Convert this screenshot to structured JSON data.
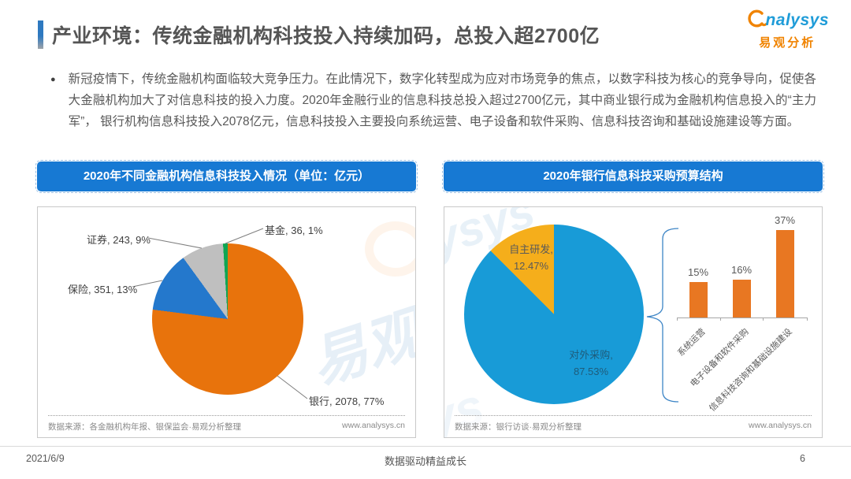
{
  "header": {
    "title": "产业环境：传统金融机构科技投入持续加码，总投入超2700亿",
    "logo": {
      "brand": "nalysys",
      "brand_cn": "易观分析"
    }
  },
  "intro": {
    "bullet": "●",
    "text": "新冠疫情下，传统金融机构面临较大竞争压力。在此情况下，数字化转型成为应对市场竞争的焦点，以数字科技为核心的竞争导向，促使各大金融机构加大了对信息科技的投入力度。2020年金融行业的信息科技总投入超过2700亿元，其中商业银行成为金融机构信息投入的“主力军”， 银行机构信息科技投入2078亿元，信息科技投入主要投向系统运营、电子设备和软件采购、信息科技咨询和基础设施建设等方面。"
  },
  "colors": {
    "header_blue": "#1779D3",
    "brand_orange": "#F08300",
    "brand_blue": "#1F9CD8"
  },
  "chart_data": [
    {
      "id": "institutions-pie",
      "type": "pie",
      "title": "2020年不同金融机构信息科技投入情况（单位：亿元）",
      "unit": "亿元",
      "slices": [
        {
          "label": "银行",
          "value": 2078,
          "pct": 77,
          "color": "#E8730C",
          "display": "银行, 2078, 77%"
        },
        {
          "label": "保险",
          "value": 351,
          "pct": 13,
          "color": "#2478CC",
          "display": "保险, 351, 13%"
        },
        {
          "label": "证券",
          "value": 243,
          "pct": 9,
          "color": "#BFBFBF",
          "display": "证券, 243, 9%"
        },
        {
          "label": "基金",
          "value": 36,
          "pct": 1,
          "color": "#0FA653",
          "display": "基金, 36, 1%"
        }
      ],
      "source": "数据来源：各金融机构年报、银保监会·易观分析整理",
      "site": "www.analysys.cn"
    },
    {
      "id": "bank-procurement-pie",
      "type": "pie",
      "title": "2020年银行信息科技采购预算结构",
      "slices": [
        {
          "label": "对外采购",
          "pct": 87.53,
          "color": "#189BD7",
          "line1": "对外采购,",
          "line2": "87.53%"
        },
        {
          "label": "自主研发",
          "pct": 12.47,
          "color": "#F5AE1B",
          "line1": "自主研发,",
          "line2": "12.47%"
        }
      ],
      "source": "数据来源：银行访谈·易观分析整理",
      "site": "www.analysys.cn"
    },
    {
      "id": "procurement-bars",
      "type": "bar",
      "categories": [
        "系统运营",
        "电子设备和软件采购",
        "信息科技咨询和基础设施建设"
      ],
      "values": [
        15,
        16,
        37
      ],
      "value_labels": [
        "15%",
        "16%",
        "37%"
      ],
      "bar_color": "#E87722",
      "ylim": [
        0,
        40
      ],
      "grid": false
    }
  ],
  "footer": {
    "date": "2021/6/9",
    "slogan": "数据驱动精益成长",
    "page": "6"
  }
}
